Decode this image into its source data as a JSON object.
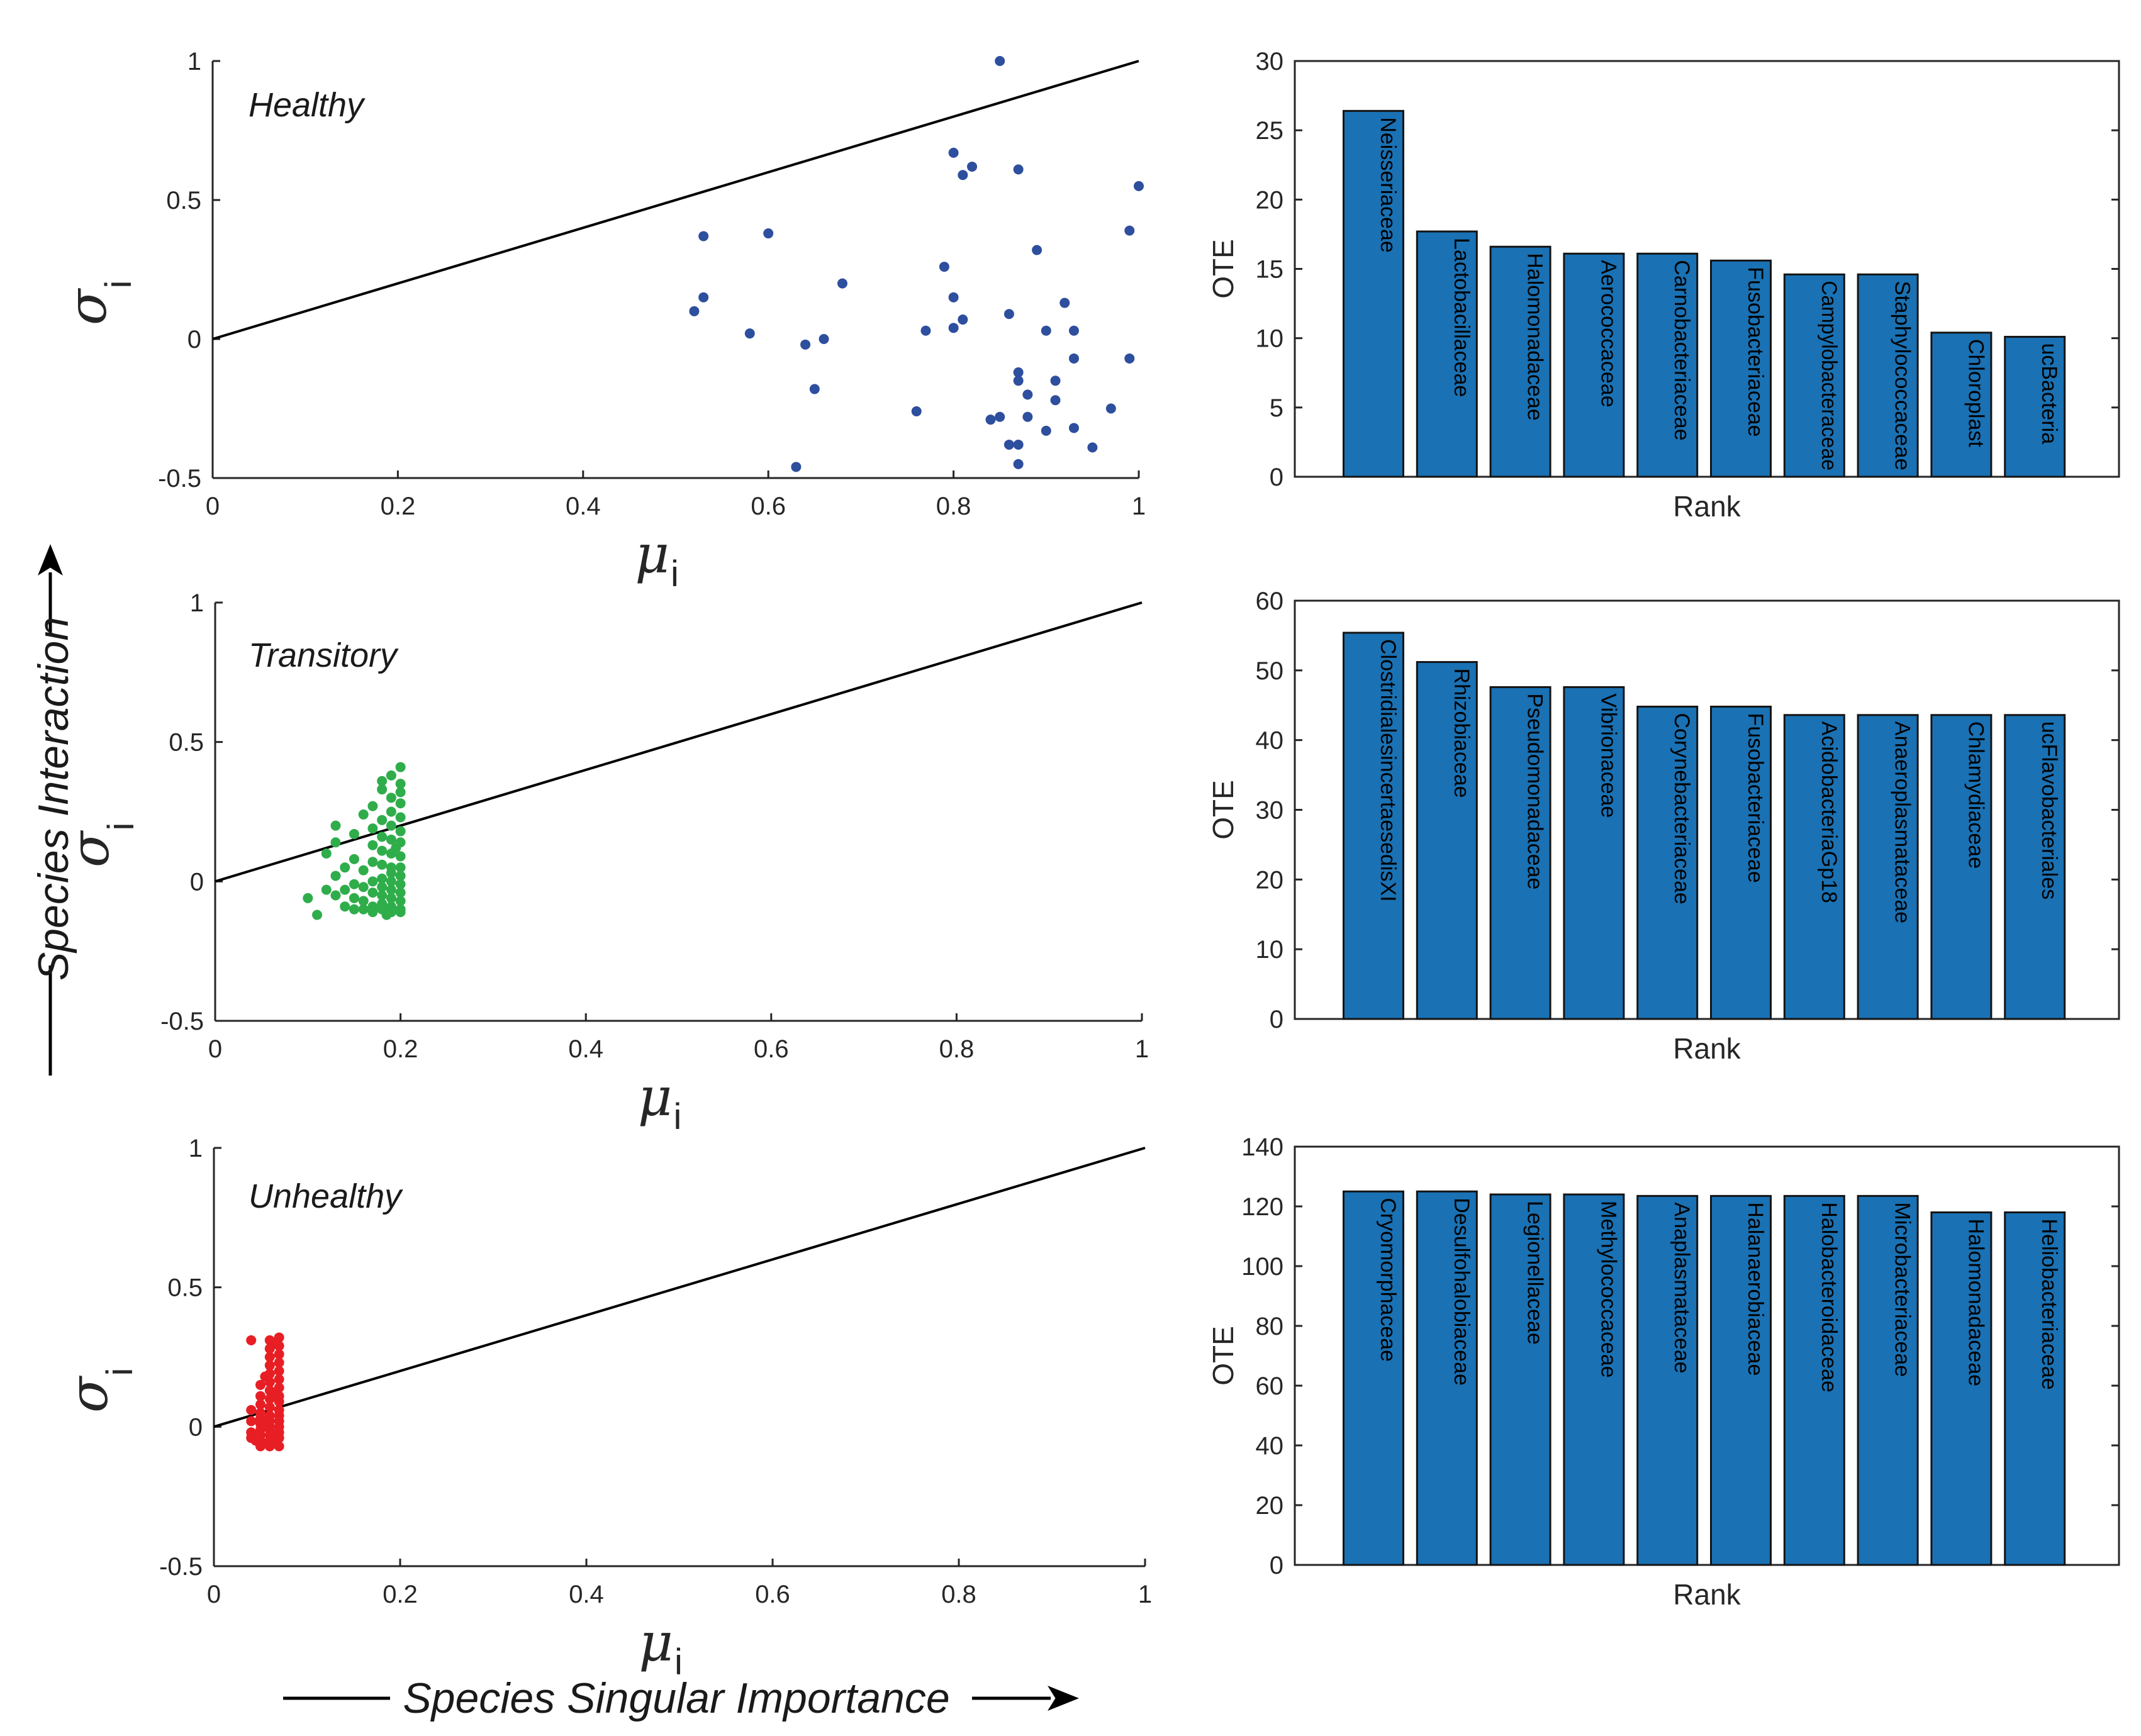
{
  "chart_data": [
    {
      "type": "scatter",
      "id": "healthy",
      "annotation": "Healthy",
      "color": "#2e4e9e",
      "xlabel_symbol": "μ",
      "xlabel_sub": "i",
      "ylabel_symbol": "σ",
      "ylabel_sub": "i",
      "xlim": [
        0,
        1
      ],
      "ylim": [
        -0.5,
        1
      ],
      "xticks": [
        0,
        0.2,
        0.4,
        0.6,
        0.8,
        1
      ],
      "xtick_labels": [
        "0",
        "0.2",
        "0.4",
        "0.6",
        "0.8",
        "1"
      ],
      "yticks": [
        -0.5,
        0,
        0.5,
        1
      ],
      "ytick_labels": [
        "-0.5",
        "0",
        "0.5",
        "1"
      ],
      "reference_line": [
        [
          0,
          0
        ],
        [
          1,
          1
        ]
      ],
      "points": [
        [
          0.85,
          1.0
        ],
        [
          1.0,
          0.55
        ],
        [
          0.8,
          0.67
        ],
        [
          0.82,
          0.62
        ],
        [
          0.87,
          0.61
        ],
        [
          0.81,
          0.59
        ],
        [
          0.99,
          0.39
        ],
        [
          0.53,
          0.37
        ],
        [
          0.6,
          0.38
        ],
        [
          0.89,
          0.32
        ],
        [
          0.79,
          0.26
        ],
        [
          0.68,
          0.2
        ],
        [
          0.53,
          0.15
        ],
        [
          0.8,
          0.15
        ],
        [
          0.92,
          0.13
        ],
        [
          0.52,
          0.1
        ],
        [
          0.86,
          0.09
        ],
        [
          0.81,
          0.07
        ],
        [
          0.77,
          0.03
        ],
        [
          0.8,
          0.04
        ],
        [
          0.9,
          0.03
        ],
        [
          0.93,
          0.03
        ],
        [
          0.58,
          0.02
        ],
        [
          0.66,
          0.0
        ],
        [
          0.64,
          -0.02
        ],
        [
          0.99,
          -0.07
        ],
        [
          0.93,
          -0.07
        ],
        [
          0.87,
          -0.12
        ],
        [
          0.87,
          -0.15
        ],
        [
          0.91,
          -0.15
        ],
        [
          0.65,
          -0.18
        ],
        [
          0.91,
          -0.22
        ],
        [
          0.88,
          -0.2
        ],
        [
          0.76,
          -0.26
        ],
        [
          0.97,
          -0.25
        ],
        [
          0.85,
          -0.28
        ],
        [
          0.88,
          -0.28
        ],
        [
          0.84,
          -0.29
        ],
        [
          0.9,
          -0.33
        ],
        [
          0.93,
          -0.32
        ],
        [
          0.86,
          -0.38
        ],
        [
          0.87,
          -0.38
        ],
        [
          0.95,
          -0.39
        ],
        [
          0.63,
          -0.46
        ],
        [
          0.87,
          -0.45
        ]
      ]
    },
    {
      "type": "scatter",
      "id": "transitory",
      "annotation": "Transitory",
      "color": "#2fad4b",
      "xlabel_symbol": "μ",
      "xlabel_sub": "i",
      "ylabel_symbol": "σ",
      "ylabel_sub": "i",
      "xlim": [
        0,
        1
      ],
      "ylim": [
        -0.5,
        1
      ],
      "xticks": [
        0,
        0.2,
        0.4,
        0.6,
        0.8,
        1
      ],
      "xtick_labels": [
        "0",
        "0.2",
        "0.4",
        "0.6",
        "0.8",
        "1"
      ],
      "yticks": [
        -0.5,
        0,
        0.5,
        1
      ],
      "ytick_labels": [
        "-0.5",
        "0",
        "0.5",
        "1"
      ],
      "reference_line": [
        [
          0,
          0
        ],
        [
          1,
          1
        ]
      ],
      "points": [
        [
          0.2,
          0.41
        ],
        [
          0.2,
          0.35
        ],
        [
          0.19,
          0.38
        ],
        [
          0.18,
          0.36
        ],
        [
          0.18,
          0.33
        ],
        [
          0.2,
          0.32
        ],
        [
          0.19,
          0.3
        ],
        [
          0.2,
          0.28
        ],
        [
          0.17,
          0.27
        ],
        [
          0.19,
          0.25
        ],
        [
          0.2,
          0.23
        ],
        [
          0.18,
          0.22
        ],
        [
          0.16,
          0.24
        ],
        [
          0.19,
          0.2
        ],
        [
          0.13,
          0.2
        ],
        [
          0.17,
          0.19
        ],
        [
          0.2,
          0.18
        ],
        [
          0.15,
          0.17
        ],
        [
          0.18,
          0.16
        ],
        [
          0.19,
          0.15
        ],
        [
          0.2,
          0.14
        ],
        [
          0.13,
          0.14
        ],
        [
          0.17,
          0.13
        ],
        [
          0.18,
          0.11
        ],
        [
          0.19,
          0.1
        ],
        [
          0.2,
          0.09
        ],
        [
          0.15,
          0.08
        ],
        [
          0.12,
          0.1
        ],
        [
          0.17,
          0.07
        ],
        [
          0.18,
          0.06
        ],
        [
          0.19,
          0.05
        ],
        [
          0.2,
          0.05
        ],
        [
          0.14,
          0.05
        ],
        [
          0.16,
          0.04
        ],
        [
          0.19,
          0.03
        ],
        [
          0.2,
          0.02
        ],
        [
          0.13,
          0.02
        ],
        [
          0.18,
          0.01
        ],
        [
          0.17,
          0.0
        ],
        [
          0.19,
          0.0
        ],
        [
          0.2,
          -0.01
        ],
        [
          0.15,
          -0.01
        ],
        [
          0.16,
          -0.02
        ],
        [
          0.18,
          -0.02
        ],
        [
          0.12,
          -0.03
        ],
        [
          0.14,
          -0.03
        ],
        [
          0.19,
          -0.03
        ],
        [
          0.2,
          -0.04
        ],
        [
          0.17,
          -0.04
        ],
        [
          0.18,
          -0.05
        ],
        [
          0.13,
          -0.05
        ],
        [
          0.15,
          -0.06
        ],
        [
          0.19,
          -0.06
        ],
        [
          0.2,
          -0.07
        ],
        [
          0.16,
          -0.07
        ],
        [
          0.18,
          -0.08
        ],
        [
          0.1,
          -0.06
        ],
        [
          0.17,
          -0.09
        ],
        [
          0.19,
          -0.09
        ],
        [
          0.2,
          -0.1
        ],
        [
          0.15,
          -0.1
        ],
        [
          0.16,
          -0.1
        ],
        [
          0.18,
          -0.1
        ],
        [
          0.19,
          -0.11
        ],
        [
          0.17,
          -0.11
        ],
        [
          0.2,
          -0.11
        ],
        [
          0.11,
          -0.12
        ],
        [
          0.14,
          -0.09
        ],
        [
          0.185,
          -0.12
        ],
        [
          0.195,
          0.12
        ]
      ]
    },
    {
      "type": "scatter",
      "id": "unhealthy",
      "annotation": "Unhealthy",
      "color": "#e81e25",
      "xlabel_symbol": "μ",
      "xlabel_sub": "i",
      "ylabel_symbol": "σ",
      "ylabel_sub": "i",
      "xlim": [
        0,
        1
      ],
      "ylim": [
        -0.5,
        1
      ],
      "xticks": [
        0,
        0.2,
        0.4,
        0.6,
        0.8,
        1
      ],
      "xtick_labels": [
        "0",
        "0.2",
        "0.4",
        "0.6",
        "0.8",
        "1"
      ],
      "yticks": [
        -0.5,
        0,
        0.5,
        1
      ],
      "ytick_labels": [
        "-0.5",
        "0",
        "0.5",
        "1"
      ],
      "reference_line": [
        [
          0,
          0
        ],
        [
          1,
          1
        ]
      ],
      "points": [
        [
          0.04,
          0.31
        ],
        [
          0.07,
          0.32
        ],
        [
          0.06,
          0.31
        ],
        [
          0.07,
          0.29
        ],
        [
          0.06,
          0.28
        ],
        [
          0.07,
          0.26
        ],
        [
          0.06,
          0.25
        ],
        [
          0.07,
          0.23
        ],
        [
          0.06,
          0.22
        ],
        [
          0.07,
          0.2
        ],
        [
          0.06,
          0.19
        ],
        [
          0.07,
          0.17
        ],
        [
          0.06,
          0.16
        ],
        [
          0.05,
          0.15
        ],
        [
          0.07,
          0.14
        ],
        [
          0.06,
          0.13
        ],
        [
          0.07,
          0.11
        ],
        [
          0.05,
          0.11
        ],
        [
          0.06,
          0.1
        ],
        [
          0.07,
          0.09
        ],
        [
          0.05,
          0.08
        ],
        [
          0.06,
          0.07
        ],
        [
          0.07,
          0.06
        ],
        [
          0.04,
          0.06
        ],
        [
          0.05,
          0.05
        ],
        [
          0.06,
          0.04
        ],
        [
          0.07,
          0.04
        ],
        [
          0.05,
          0.03
        ],
        [
          0.06,
          0.02
        ],
        [
          0.07,
          0.02
        ],
        [
          0.04,
          0.02
        ],
        [
          0.05,
          0.01
        ],
        [
          0.06,
          0.0
        ],
        [
          0.07,
          0.0
        ],
        [
          0.05,
          -0.01
        ],
        [
          0.06,
          -0.01
        ],
        [
          0.04,
          -0.02
        ],
        [
          0.07,
          -0.02
        ],
        [
          0.05,
          -0.03
        ],
        [
          0.06,
          -0.03
        ],
        [
          0.04,
          -0.04
        ],
        [
          0.07,
          -0.04
        ],
        [
          0.05,
          -0.05
        ],
        [
          0.06,
          -0.05
        ],
        [
          0.055,
          -0.06
        ],
        [
          0.065,
          -0.06
        ],
        [
          0.045,
          -0.05
        ],
        [
          0.06,
          -0.07
        ],
        [
          0.05,
          -0.07
        ],
        [
          0.07,
          -0.07
        ],
        [
          0.065,
          0.12
        ],
        [
          0.055,
          0.18
        ],
        [
          0.065,
          0.3
        ]
      ]
    },
    {
      "type": "bar",
      "id": "healthy-bars",
      "xlabel": "Rank",
      "ylabel": "OTE",
      "ylim": [
        0,
        30
      ],
      "yticks": [
        0,
        5,
        10,
        15,
        20,
        25,
        30
      ],
      "categories": [
        "Neisseriaceae",
        "Lactobacillaceae",
        "Halomonadaceae",
        "Aerococcaceae",
        "Carnobacteriaceae",
        "Fusobacteriaceae",
        "Campylobacteraceae",
        "Staphylococcaceae",
        "Chloroplast",
        "ucBacteria"
      ],
      "values": [
        26.4,
        17.7,
        16.6,
        16.1,
        16.1,
        15.6,
        14.6,
        14.6,
        10.4,
        10.1
      ]
    },
    {
      "type": "bar",
      "id": "transitory-bars",
      "xlabel": "Rank",
      "ylabel": "OTE",
      "ylim": [
        0,
        60
      ],
      "yticks": [
        0,
        10,
        20,
        30,
        40,
        50,
        60
      ],
      "categories": [
        "ClostridialesincertaesedisXI",
        "Rhizobiaceae",
        "Pseudomonadaceae",
        "Vibrionaceae",
        "Corynebacteriaceae",
        "Fusobacteriaceae",
        "AcidobacteriaGp18",
        "Anaeroplasmataceae",
        "Chlamydiaceae",
        "ucFlavobacteriales"
      ],
      "values": [
        55.4,
        51.2,
        47.6,
        47.6,
        44.8,
        44.8,
        43.6,
        43.6,
        43.6,
        43.6
      ]
    },
    {
      "type": "bar",
      "id": "unhealthy-bars",
      "xlabel": "Rank",
      "ylabel": "OTE",
      "ylim": [
        0,
        140
      ],
      "yticks": [
        0,
        20,
        40,
        60,
        80,
        100,
        120,
        140
      ],
      "categories": [
        "Cryomorphaceae",
        "Desulfohalobiaceae",
        "Legionellaceae",
        "Methylococcaceae",
        "Anaplasmataceae",
        "Halanaerobiaceae",
        "Halobacteroidaceae",
        "Microbacteriaceae",
        "Halomonadaceae",
        "Heliobacteriaceae"
      ],
      "values": [
        125,
        125,
        124,
        124,
        123.5,
        123.5,
        123.5,
        123.5,
        118,
        118
      ]
    }
  ],
  "figure_labels": {
    "vertical": "Species Interaction",
    "horizontal": "Species Singular Importance"
  }
}
